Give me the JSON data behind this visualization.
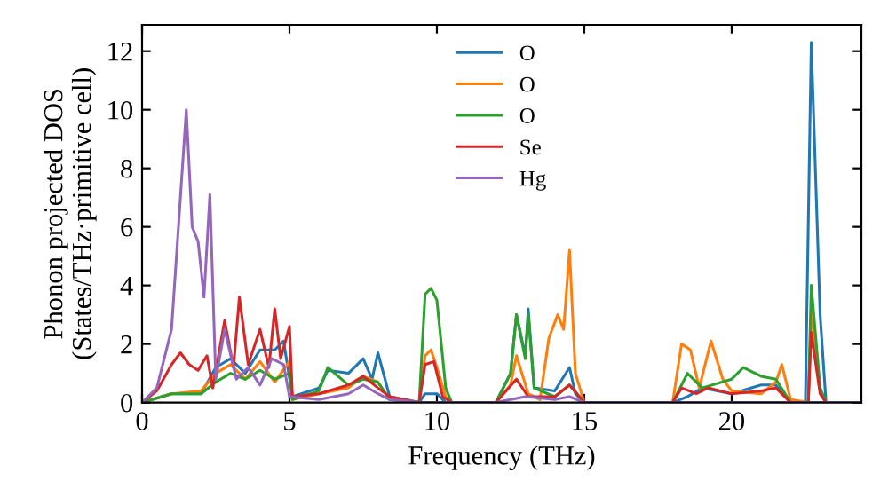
{
  "chart_data": {
    "type": "line",
    "xlabel": "Frequency (THz)",
    "ylabel": "Phonon projected DOS\n(States/THz·primitive cell)",
    "xlim": [
      0,
      24.4
    ],
    "ylim": [
      0,
      12.9
    ],
    "xticks": [
      0,
      5,
      10,
      15,
      20
    ],
    "yticks": [
      0,
      2,
      4,
      6,
      8,
      10,
      12
    ],
    "legend": "top",
    "grid": false,
    "series": [
      {
        "name": "O",
        "color": "#1f77b4",
        "x": [
          0,
          1,
          2,
          2.5,
          3,
          3.5,
          4,
          4.5,
          4.8,
          5.1,
          6,
          6.3,
          7,
          7.5,
          7.8,
          8,
          8.4,
          9.4,
          9.6,
          10,
          10.3,
          12,
          12.5,
          12.7,
          13,
          13.1,
          13.3,
          14,
          14.5,
          14.7,
          15,
          18,
          18.5,
          19,
          20,
          21,
          21.5,
          22,
          22.5,
          22.7,
          23,
          23.2,
          24.4
        ],
        "values": [
          0,
          0.3,
          0.3,
          1.2,
          1.5,
          1,
          1.8,
          1.8,
          2.1,
          0.2,
          0.5,
          1.1,
          1,
          1.5,
          0.8,
          1.7,
          0.2,
          0,
          0.3,
          0.3,
          0,
          0,
          1,
          3,
          1.6,
          3.2,
          0.5,
          0.4,
          1.2,
          0.3,
          0,
          0,
          0.2,
          0.5,
          0.3,
          0.6,
          0.6,
          0,
          0,
          12.3,
          3,
          0,
          0
        ]
      },
      {
        "name": "O",
        "color": "#ff7f0e",
        "x": [
          0,
          1,
          2,
          2.5,
          3,
          3.5,
          4,
          4.5,
          5,
          5.1,
          6,
          7,
          7.5,
          8,
          8.4,
          9.4,
          9.6,
          9.8,
          10,
          10.3,
          10.5,
          12,
          12.5,
          12.7,
          13.1,
          13.5,
          13.8,
          14.1,
          14.3,
          14.5,
          14.7,
          15,
          18,
          18.3,
          18.6,
          18.9,
          19.3,
          19.7,
          20,
          21,
          21.5,
          21.7,
          22,
          22.6,
          22.7,
          23,
          23.2,
          24.4
        ],
        "values": [
          0,
          0.3,
          0.4,
          1,
          1.3,
          0.8,
          1.4,
          0.7,
          1.4,
          0.1,
          0.3,
          0.5,
          0.9,
          0.7,
          0.1,
          0,
          1.6,
          1.8,
          1.2,
          0.2,
          0,
          0,
          0.6,
          1.6,
          0.3,
          0.1,
          2.2,
          3,
          2.5,
          5.2,
          1,
          0,
          0,
          2,
          1.8,
          0.5,
          2.1,
          0.8,
          0.4,
          0.3,
          0.7,
          1.3,
          0.1,
          0,
          3.2,
          0.4,
          0,
          0
        ]
      },
      {
        "name": "O",
        "color": "#2ca02c",
        "x": [
          0,
          1,
          2,
          2.5,
          3,
          3.5,
          4,
          4.5,
          5,
          5.1,
          6,
          6.3,
          7,
          7.5,
          8,
          8.4,
          9.4,
          9.6,
          9.8,
          10,
          10.3,
          10.5,
          12,
          12.5,
          12.7,
          13,
          13.1,
          13.3,
          14,
          14.5,
          15,
          18,
          18.5,
          19,
          20,
          20.4,
          21,
          21.5,
          22,
          22.6,
          22.7,
          23,
          23.2,
          24.4
        ],
        "values": [
          0,
          0.3,
          0.3,
          0.7,
          1,
          0.8,
          1.1,
          0.8,
          1,
          0.1,
          0.4,
          1.2,
          0.6,
          0.8,
          0.7,
          0.1,
          0,
          3.7,
          3.9,
          3.5,
          0.5,
          0,
          0,
          1,
          3,
          1.5,
          3,
          0.5,
          0.2,
          0.6,
          0,
          0,
          1,
          0.5,
          0.8,
          1.2,
          0.9,
          0.8,
          0,
          0,
          4,
          0.5,
          0,
          0
        ]
      },
      {
        "name": "Se",
        "color": "#d62728",
        "x": [
          0,
          0.5,
          1,
          1.3,
          1.6,
          1.9,
          2.2,
          2.4,
          2.8,
          3.1,
          3.3,
          3.6,
          4,
          4.3,
          4.5,
          4.7,
          5,
          5.1,
          6,
          7,
          7.5,
          8,
          8.4,
          9.4,
          9.6,
          9.9,
          10.2,
          10.5,
          12,
          12.7,
          13.1,
          14,
          14.5,
          15,
          18,
          18.3,
          18.8,
          19.2,
          20,
          21,
          21.5,
          22,
          22.6,
          22.7,
          23,
          23.2,
          24.4
        ],
        "values": [
          0,
          0.4,
          1.3,
          1.7,
          1.3,
          1.1,
          1.6,
          0.5,
          2.8,
          1.2,
          3.6,
          1.3,
          2.5,
          1.2,
          3.2,
          1.5,
          2.6,
          0.2,
          0.3,
          0.6,
          0.9,
          0.5,
          0.2,
          0,
          1.3,
          1.4,
          0.2,
          0,
          0,
          0.8,
          0.2,
          0.2,
          0.6,
          0,
          0,
          0.5,
          0.3,
          0.5,
          0.3,
          0.4,
          0.5,
          0,
          0,
          2.4,
          0.3,
          0,
          0
        ]
      },
      {
        "name": "Hg",
        "color": "#9467bd",
        "x": [
          0,
          0.5,
          1,
          1.3,
          1.5,
          1.7,
          1.9,
          2.1,
          2.3,
          2.5,
          2.8,
          3.2,
          3.6,
          4,
          4.4,
          4.8,
          5,
          6,
          7,
          7.5,
          8,
          8.4,
          9.5,
          12,
          13,
          14,
          14.5,
          15,
          24.4
        ],
        "values": [
          0,
          0.5,
          2.5,
          7,
          10,
          6,
          5.5,
          3.6,
          7.1,
          0.8,
          2.5,
          0.8,
          1.2,
          0.6,
          1.5,
          1.3,
          0.2,
          0.1,
          0.3,
          0.6,
          0.3,
          0.1,
          0,
          0,
          0.2,
          0.1,
          0.2,
          0,
          0
        ]
      }
    ]
  }
}
